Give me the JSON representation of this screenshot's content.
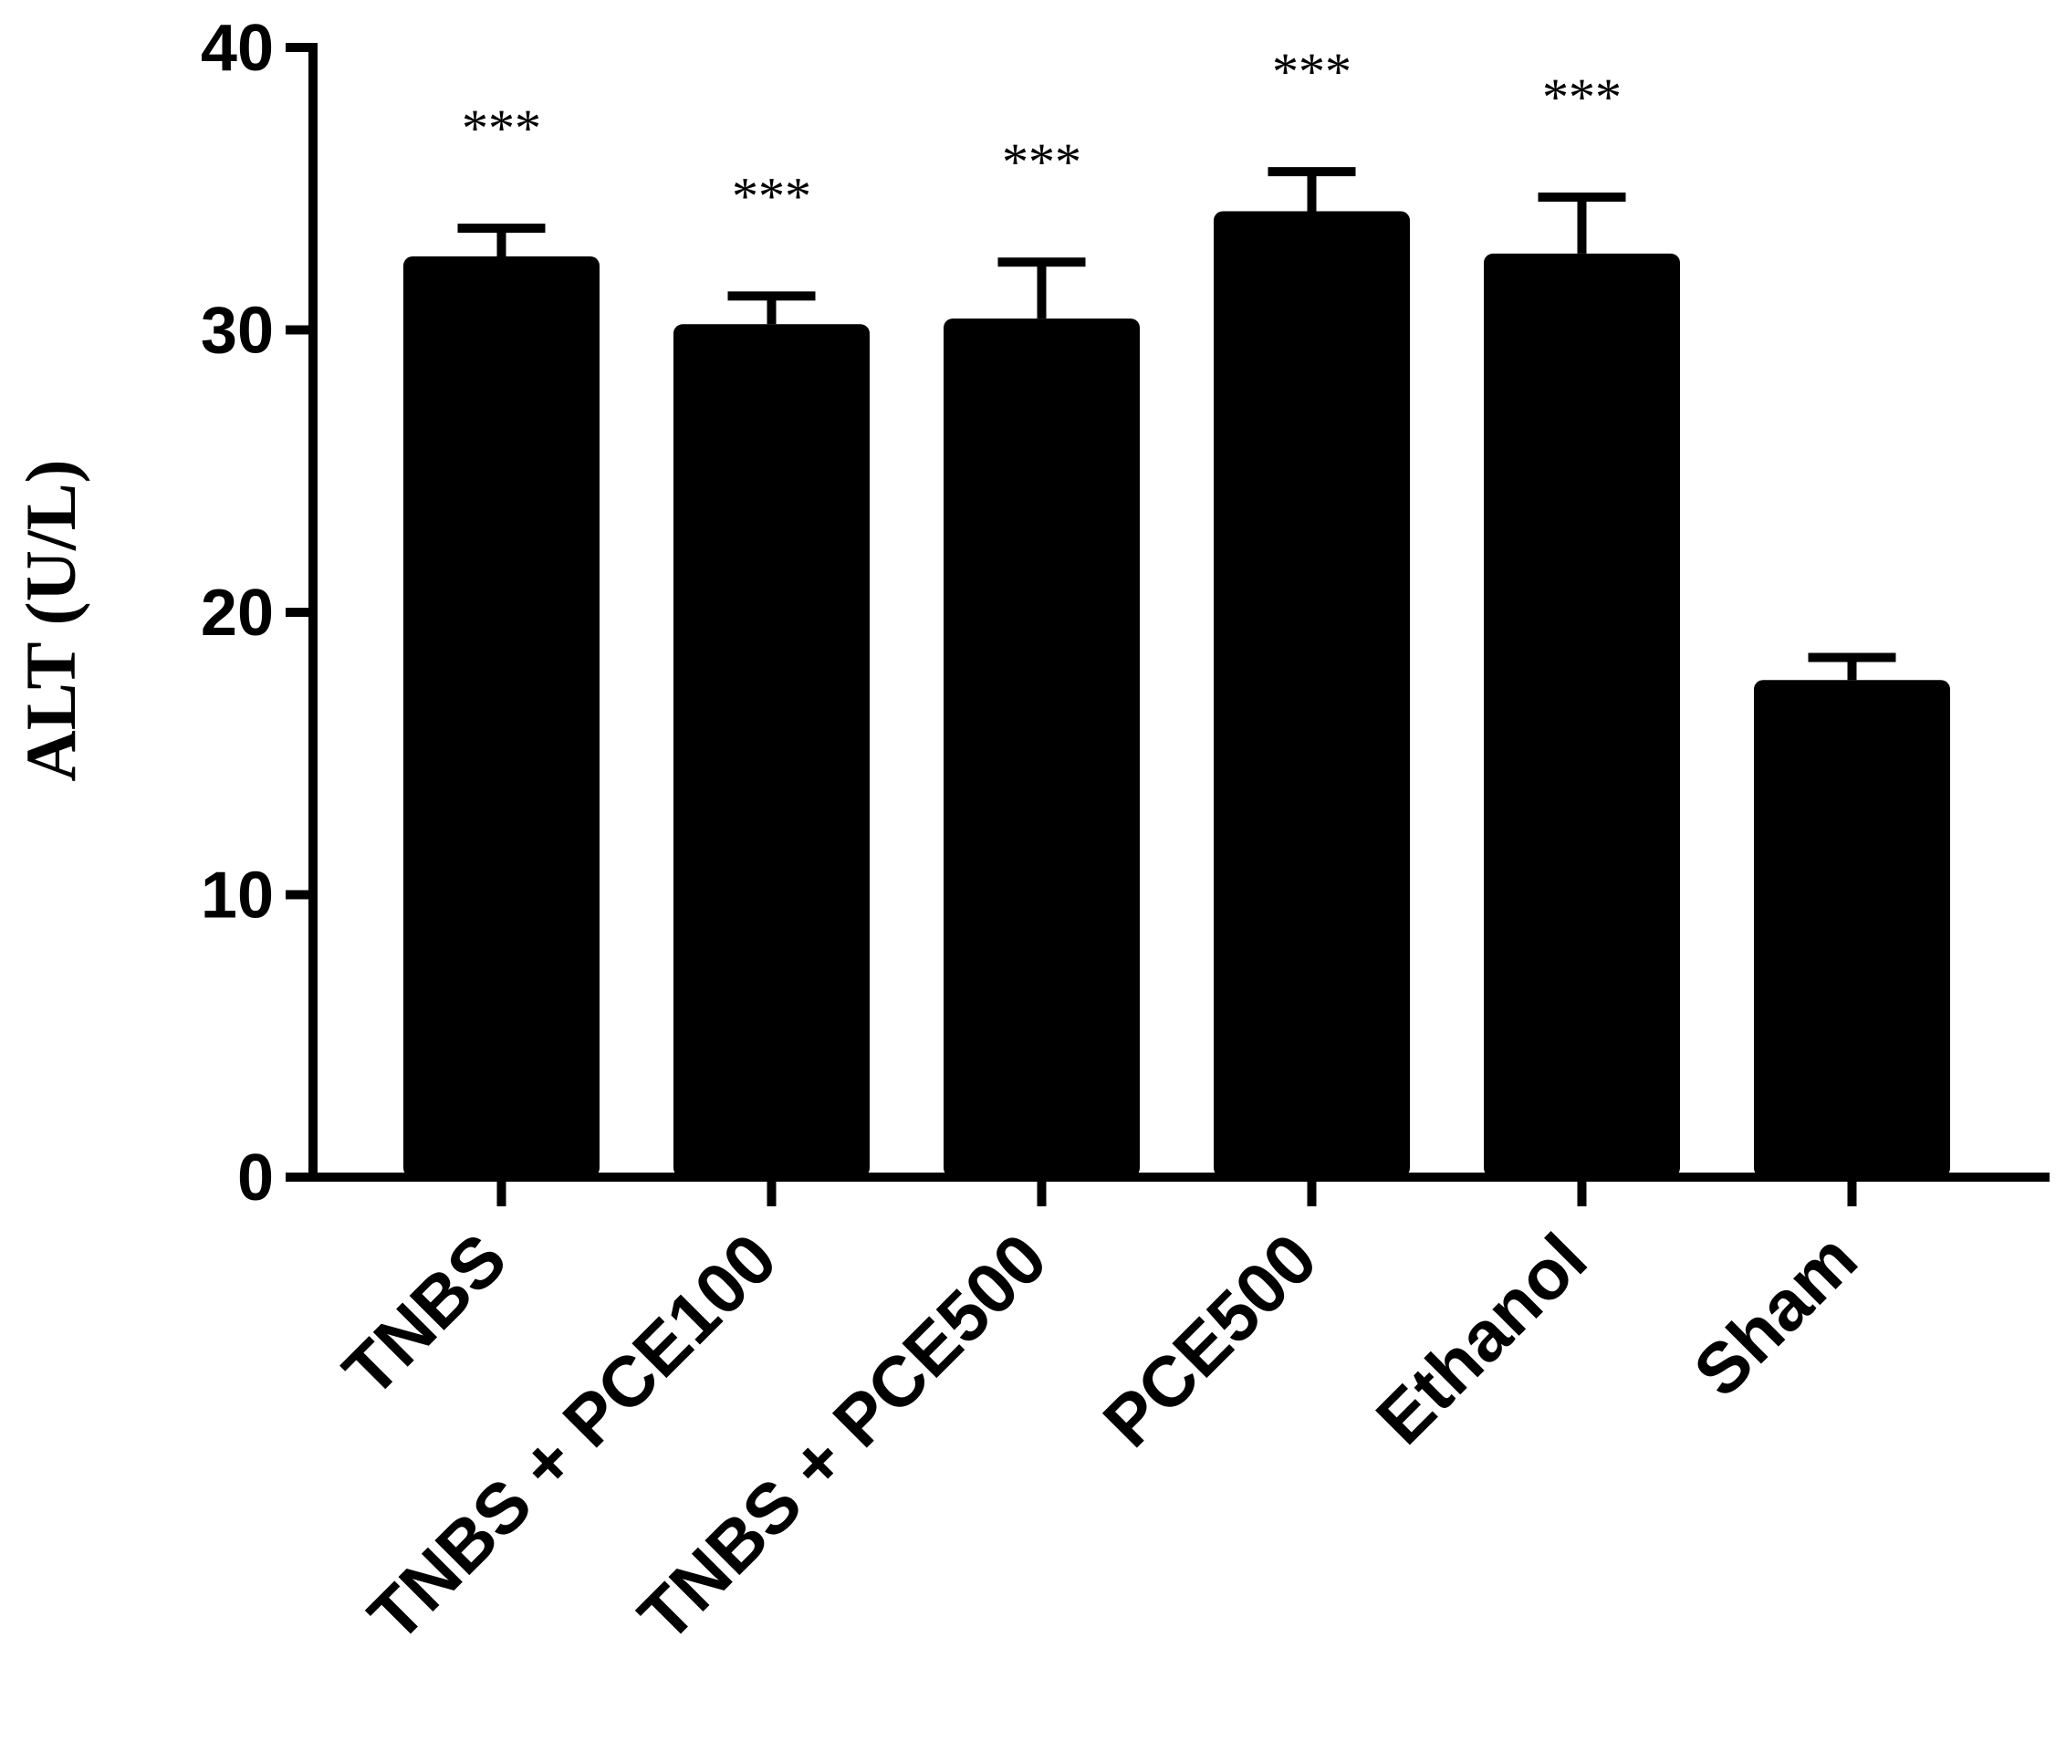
{
  "chart_data": {
    "type": "bar",
    "ylabel": "ALT (U/L)",
    "xlabel": "",
    "ylim": [
      0,
      40
    ],
    "yticks": [
      0,
      10,
      20,
      30,
      40
    ],
    "grid": false,
    "bar_color": "#000000",
    "categories": [
      "TNBS",
      "TNBS + PCE100",
      "TNBS + PCE500",
      "PCE500",
      "Ethanol",
      "Sham"
    ],
    "values": [
      32.6,
      30.2,
      30.4,
      34.2,
      32.7,
      17.6
    ],
    "error": [
      1.0,
      1.0,
      2.0,
      1.4,
      2.0,
      0.8
    ],
    "significance": [
      "***",
      "***",
      "***",
      "***",
      "***",
      ""
    ]
  }
}
